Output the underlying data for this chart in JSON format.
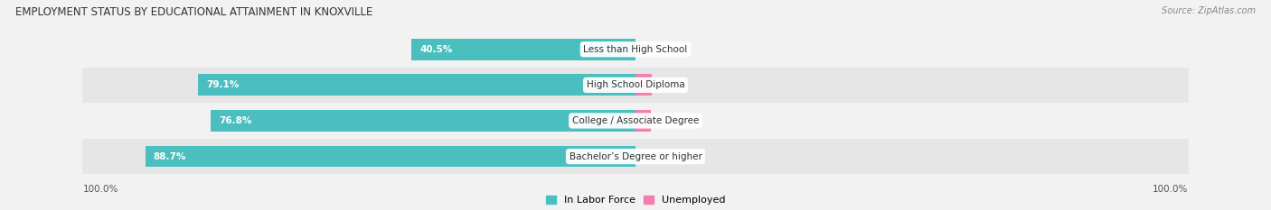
{
  "title": "EMPLOYMENT STATUS BY EDUCATIONAL ATTAINMENT IN KNOXVILLE",
  "source": "Source: ZipAtlas.com",
  "categories": [
    "Less than High School",
    "High School Diploma",
    "College / Associate Degree",
    "Bachelor’s Degree or higher"
  ],
  "in_labor_force": [
    40.5,
    79.1,
    76.8,
    88.7
  ],
  "unemployed": [
    0.0,
    2.9,
    2.8,
    0.0
  ],
  "max_value": 100.0,
  "bar_color_labor": "#4bbfbf",
  "bar_color_unemployed": "#f47eb0",
  "bg_color_light": "#f2f2f2",
  "bg_color_dark": "#e6e6e6",
  "title_fontsize": 8.5,
  "label_fontsize": 7.5,
  "tick_fontsize": 7.5,
  "legend_fontsize": 8,
  "source_fontsize": 7,
  "left_axis_label": "100.0%",
  "right_axis_label": "100.0%"
}
